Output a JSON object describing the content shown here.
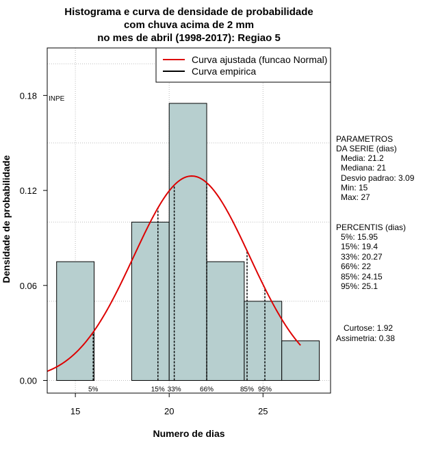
{
  "chart_data": {
    "type": "histogram",
    "title": [
      "Histograma e curva de densidade de probabilidade",
      "com chuva acima de 2 mm",
      "no mes de abril (1998-2017): Regiao 5"
    ],
    "xlabel": "Numero de dias",
    "ylabel": "Densidade de probabilidade",
    "xlim": [
      13.5,
      28.6
    ],
    "ylim": [
      -0.008,
      0.21
    ],
    "xticks": [
      15,
      20,
      25
    ],
    "yticks": [
      0.0,
      0.06,
      0.12,
      0.18
    ],
    "ytick_labels": [
      "0.00",
      "0.06",
      "0.12",
      "0.18"
    ],
    "bins": [
      {
        "x0": 14,
        "x1": 16,
        "density": 0.075
      },
      {
        "x0": 16,
        "x1": 18,
        "density": 0.0
      },
      {
        "x0": 18,
        "x1": 20,
        "density": 0.1
      },
      {
        "x0": 20,
        "x1": 22,
        "density": 0.175
      },
      {
        "x0": 22,
        "x1": 24,
        "density": 0.075
      },
      {
        "x0": 24,
        "x1": 26,
        "density": 0.05
      },
      {
        "x0": 26,
        "x1": 28,
        "density": 0.025
      }
    ],
    "normal_curve": {
      "name": "Curva ajustada (funcao Normal)",
      "mean": 21.2,
      "sd": 3.09,
      "x_from": 13.5,
      "x_to": 27.0,
      "color": "#dd0000"
    },
    "empirical_curve": {
      "name": "Curva empirica",
      "color": "#000000"
    },
    "percentiles": [
      {
        "label": "5%",
        "value": 15.95
      },
      {
        "label": "15%",
        "value": 19.4
      },
      {
        "label": "33%",
        "value": 20.27
      },
      {
        "label": "66%",
        "value": 22.0
      },
      {
        "label": "85%",
        "value": 24.15
      },
      {
        "label": "95%",
        "value": 25.1
      }
    ],
    "watermark": "INPE",
    "bar_fill": "#b7cfcf",
    "grid": true,
    "legend_position": "top-right"
  },
  "parametros": {
    "heading": [
      "PARAMETROS",
      "DA SERIE (dias)"
    ],
    "lines": [
      "Media: 21.2",
      "Mediana: 21",
      "Desvio padrao: 3.09",
      "Min: 15",
      "Max: 27"
    ]
  },
  "percentis": {
    "heading": "PERCENTIS (dias)",
    "lines": [
      "5%: 15.95",
      "15%: 19.4",
      "33%: 20.27",
      "66%: 22",
      "85%: 24.15",
      "95%: 25.1"
    ]
  },
  "shape": {
    "lines": [
      "Curtose: 1.92",
      "Assimetria: 0.38"
    ]
  }
}
